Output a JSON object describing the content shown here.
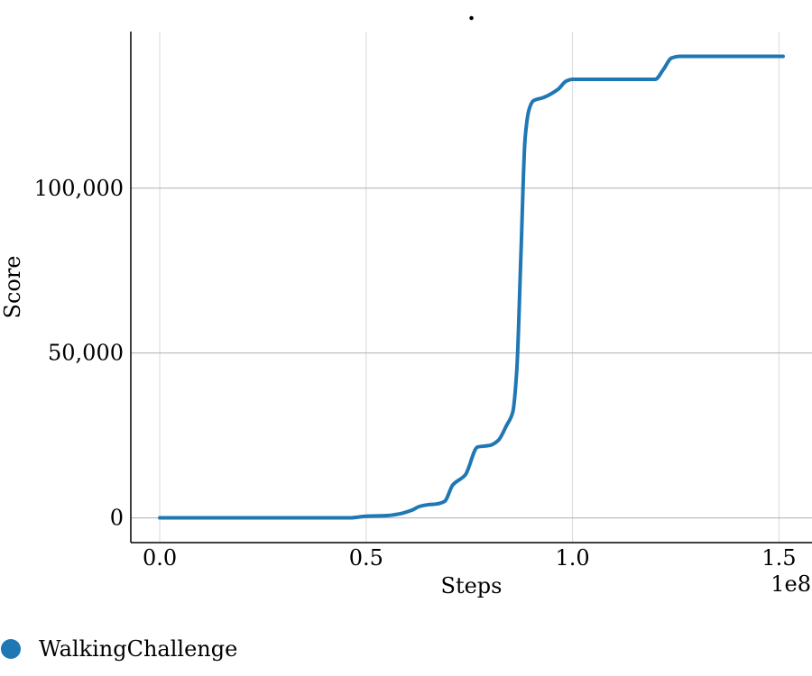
{
  "chart_data": {
    "type": "line",
    "title": ".",
    "xlabel": "Steps",
    "ylabel": "Score",
    "x_scale_label": "1e8",
    "xlim": [
      -0.07,
      1.58
    ],
    "ylim": [
      -7500,
      147500
    ],
    "x_ticks": [
      0.0,
      0.5,
      1.0,
      1.5
    ],
    "x_tick_labels": [
      "0.0",
      "0.5",
      "1.0",
      "1.5"
    ],
    "y_ticks": [
      0,
      50000,
      100000
    ],
    "y_tick_labels": [
      "0",
      "50,000",
      "100,000"
    ],
    "grid": true,
    "legend_position": "bottom-left",
    "series": [
      {
        "name": "WalkingChallenge",
        "color": "#1f77b4",
        "x": [
          0.0,
          0.1,
          0.2,
          0.3,
          0.4,
          0.46,
          0.5,
          0.55,
          0.58,
          0.61,
          0.63,
          0.65,
          0.67,
          0.69,
          0.71,
          0.74,
          0.77,
          0.8,
          0.82,
          0.84,
          0.855,
          0.865,
          0.875,
          0.885,
          0.895,
          0.905,
          0.93,
          0.965,
          0.985,
          1.0,
          1.05,
          1.1,
          1.15,
          1.2,
          1.22,
          1.24,
          1.26,
          1.3,
          1.35,
          1.4,
          1.45,
          1.51
        ],
        "y": [
          0,
          0,
          0,
          0,
          0,
          0,
          500,
          700,
          1200,
          2300,
          3500,
          4000,
          4200,
          5000,
          10000,
          13000,
          21500,
          22000,
          23500,
          28000,
          32000,
          45000,
          80000,
          115000,
          124000,
          126500,
          127500,
          130000,
          132500,
          133000,
          133000,
          133000,
          133000,
          133000,
          136000,
          139500,
          140000,
          140000,
          140000,
          140000,
          140000,
          140000
        ]
      }
    ]
  }
}
